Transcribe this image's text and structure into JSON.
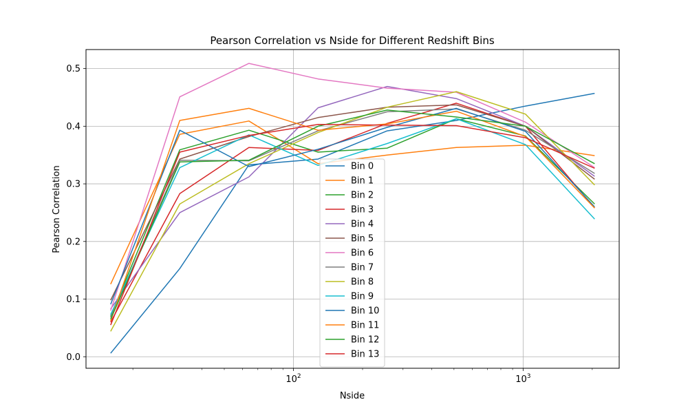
{
  "chart_data": {
    "type": "line",
    "title": "Pearson Correlation vs Nside for Different Redshift Bins",
    "xlabel": "Nside",
    "ylabel": "Pearson Correlation",
    "x_scale": "log",
    "x": [
      16,
      32,
      64,
      128,
      256,
      512,
      1024,
      2048
    ],
    "xlim": [
      12.5,
      2620
    ],
    "ylim": [
      -0.02,
      0.533
    ],
    "y_ticks": [
      0.0,
      0.1,
      0.2,
      0.3,
      0.4,
      0.5
    ],
    "y_tick_labels": [
      "0.0",
      "0.1",
      "0.2",
      "0.3",
      "0.4",
      "0.5"
    ],
    "x_ticks": [
      100,
      1000
    ],
    "x_tick_labels": [
      "10",
      "10"
    ],
    "x_tick_exponents": [
      "2",
      "3"
    ],
    "grid": true,
    "legend_position": "lower-center",
    "series": [
      {
        "name": "Bin 0",
        "color": "#1f77b4",
        "values": [
          0.006,
          0.153,
          0.333,
          0.343,
          0.392,
          0.41,
          0.435,
          0.457
        ]
      },
      {
        "name": "Bin 1",
        "color": "#ff7f0e",
        "values": [
          0.126,
          0.386,
          0.409,
          0.335,
          0.35,
          0.363,
          0.367,
          0.349
        ]
      },
      {
        "name": "Bin 2",
        "color": "#2ca02c",
        "values": [
          0.07,
          0.359,
          0.393,
          0.355,
          0.362,
          0.413,
          0.383,
          0.265
        ]
      },
      {
        "name": "Bin 3",
        "color": "#d62728",
        "values": [
          0.06,
          0.283,
          0.363,
          0.358,
          0.405,
          0.44,
          0.4,
          0.258
        ]
      },
      {
        "name": "Bin 4",
        "color": "#9467bd",
        "values": [
          0.083,
          0.25,
          0.312,
          0.432,
          0.469,
          0.448,
          0.4,
          0.313
        ]
      },
      {
        "name": "Bin 5",
        "color": "#8c564b",
        "values": [
          0.098,
          0.343,
          0.382,
          0.415,
          0.433,
          0.437,
          0.4,
          0.308
        ]
      },
      {
        "name": "Bin 6",
        "color": "#e377c2",
        "values": [
          0.08,
          0.451,
          0.509,
          0.482,
          0.466,
          0.459,
          0.407,
          0.328
        ]
      },
      {
        "name": "Bin 7",
        "color": "#7f7f7f",
        "values": [
          0.068,
          0.341,
          0.34,
          0.392,
          0.425,
          0.43,
          0.393,
          0.318
        ]
      },
      {
        "name": "Bin 8",
        "color": "#bcbd22",
        "values": [
          0.044,
          0.265,
          0.335,
          0.389,
          0.433,
          0.46,
          0.421,
          0.298
        ]
      },
      {
        "name": "Bin 9",
        "color": "#17becf",
        "values": [
          0.073,
          0.328,
          0.385,
          0.332,
          0.37,
          0.413,
          0.368,
          0.239
        ]
      },
      {
        "name": "Bin 10",
        "color": "#1f77b4",
        "values": [
          0.091,
          0.393,
          0.33,
          0.36,
          0.398,
          0.431,
          0.391,
          0.26
        ]
      },
      {
        "name": "Bin 11",
        "color": "#ff7f0e",
        "values": [
          0.062,
          0.41,
          0.431,
          0.393,
          0.404,
          0.426,
          0.382,
          0.258
        ]
      },
      {
        "name": "Bin 12",
        "color": "#2ca02c",
        "values": [
          0.065,
          0.338,
          0.341,
          0.4,
          0.428,
          0.416,
          0.4,
          0.335
        ]
      },
      {
        "name": "Bin 13",
        "color": "#d62728",
        "values": [
          0.055,
          0.355,
          0.384,
          0.403,
          0.402,
          0.401,
          0.38,
          0.327
        ]
      }
    ]
  }
}
